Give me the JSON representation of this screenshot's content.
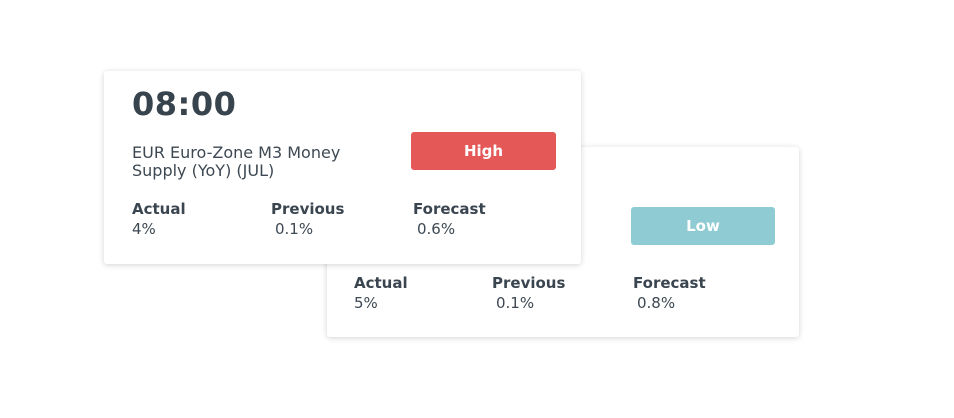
{
  "cards": [
    {
      "time": "08:00",
      "event": "EUR Euro-Zone M3 Money Supply (YoY) (JUL)",
      "impact": "High",
      "impact_color": "#e55858",
      "stats": {
        "actual_label": "Actual",
        "actual_value": "4%",
        "previous_label": "Previous",
        "previous_value": "0.1%",
        "forecast_label": "Forecast",
        "forecast_value": "0.6%"
      }
    },
    {
      "impact": "Low",
      "impact_color": "#8fcbd3",
      "stats": {
        "actual_label": "Actual",
        "actual_value": "5%",
        "previous_label": "Previous",
        "previous_value": "0.1%",
        "forecast_label": "Forecast",
        "forecast_value": "0.8%"
      }
    }
  ]
}
